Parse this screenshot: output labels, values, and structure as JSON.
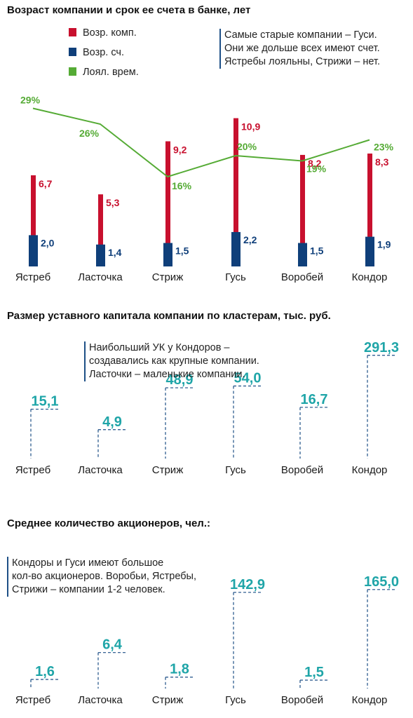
{
  "chart_data": [
    {
      "type": "bar",
      "title": "Возраст компании и срок ее счета в банке, лет",
      "categories": [
        "Ястреб",
        "Ласточка",
        "Стриж",
        "Гусь",
        "Воробей",
        "Кондор"
      ],
      "series": [
        {
          "name": "Возр. комп.",
          "type": "bar",
          "color": "#c8102e",
          "values": [
            6.7,
            5.3,
            9.2,
            10.9,
            8.2,
            8.3
          ],
          "labels": [
            "6,7",
            "5,3",
            "9,2",
            "10,9",
            "8,2",
            "8,3"
          ]
        },
        {
          "name": "Возр. сч.",
          "type": "bar",
          "color": "#0f3f7a",
          "values": [
            2.0,
            1.4,
            1.5,
            2.2,
            1.5,
            1.9
          ],
          "labels": [
            "2,0",
            "1,4",
            "1,5",
            "2,2",
            "1,5",
            "1,9"
          ]
        },
        {
          "name": "Лоял. врем.",
          "type": "line",
          "unit": "%",
          "color": "#55ab35",
          "values": [
            29,
            26,
            16,
            20,
            19,
            23
          ],
          "labels": [
            "29%",
            "26%",
            "16%",
            "20%",
            "19%",
            "23%"
          ]
        }
      ],
      "ylim": [
        0,
        11
      ],
      "line_ylim": [
        0,
        40
      ],
      "grid": false,
      "legend_position": "top-left",
      "annotation": [
        "Самые старые компании – Гуси.",
        "Они же дольше всех имеют счет.",
        "Ястребы лояльны, Стрижи – нет."
      ]
    },
    {
      "type": "bar",
      "title": "Размер уставного капитала компании по кластерам, тыс. руб.",
      "categories": [
        "Ястреб",
        "Ласточка",
        "Стриж",
        "Гусь",
        "Воробей",
        "Кондор"
      ],
      "values": [
        15.1,
        4.9,
        48.9,
        54.0,
        16.7,
        291.3
      ],
      "labels": [
        "15,1",
        "4,9",
        "48,9",
        "54,0",
        "16,7",
        "291,3"
      ],
      "color": "#1fa5a8",
      "scale": "log",
      "ylim": [
        1,
        300
      ],
      "grid": false,
      "annotation": [
        "Наибольший УК у Кондоров –",
        "создавались как крупные компании.",
        "Ласточки – маленькие компании."
      ]
    },
    {
      "type": "bar",
      "title": "Среднее количество акционеров, чел.:",
      "categories": [
        "Ястреб",
        "Ласточка",
        "Стриж",
        "Гусь",
        "Воробей",
        "Кондор"
      ],
      "values": [
        1.6,
        6.4,
        1.8,
        142.9,
        1.5,
        165.0
      ],
      "labels": [
        "1,6",
        "6,4",
        "1,8",
        "142,9",
        "1,5",
        "165,0"
      ],
      "color": "#1fa5a8",
      "scale": "log",
      "ylim": [
        1,
        170
      ],
      "grid": false,
      "annotation": [
        "Кондоры и Гуси имеют большое",
        "кол-во акционеров. Воробьи, Ястребы,",
        "Стрижи – компании 1-2 человек."
      ]
    }
  ]
}
